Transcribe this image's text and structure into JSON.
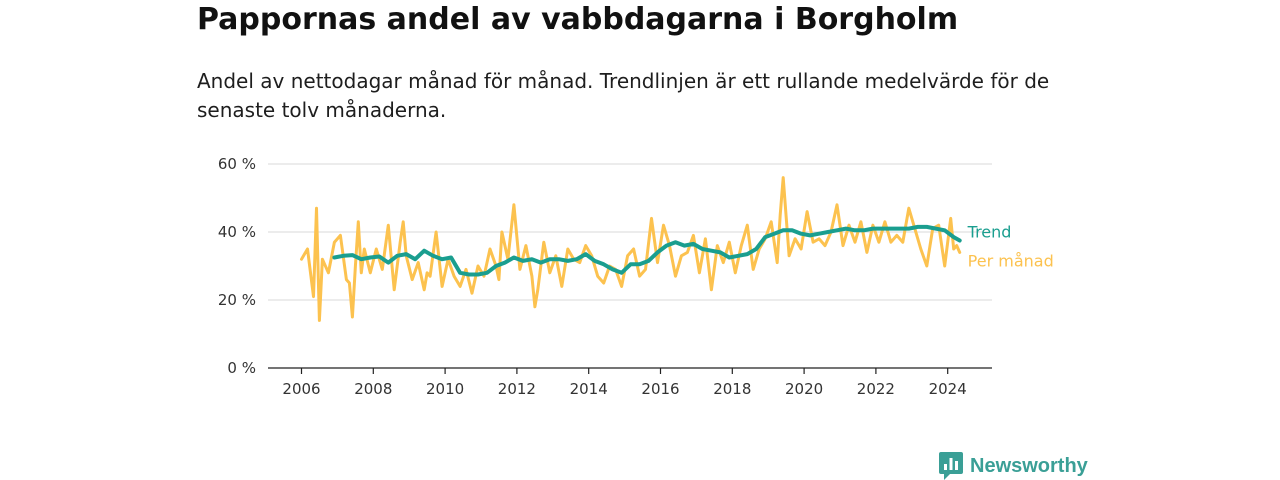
{
  "header": {
    "title": "Pappornas andel av vabbdagarna i Borgholm",
    "subtitle": "Andel av nettodagar månad för månad. Trendlinjen är ett rullande medelvärde för de senaste tolv månaderna."
  },
  "brand": {
    "name": "Newsworthy",
    "icon": "newsworthy-logo-icon",
    "color": "#3a9f96"
  },
  "chart_data": {
    "type": "line",
    "title": "Pappornas andel av vabbdagarna i Borgholm",
    "subtitle": "Andel av nettodagar månad för månad. Trendlinjen är ett rullande medelvärde för de senaste tolv månaderna.",
    "xlabel": "",
    "ylabel": "",
    "xlim": [
      "2006-01",
      "2024-12"
    ],
    "ylim": [
      0,
      60
    ],
    "y_ticks": [
      0,
      20,
      40,
      60
    ],
    "y_tick_labels": [
      "0 %",
      "20 %",
      "40 %",
      "60 %"
    ],
    "x_ticks": [
      "2006",
      "2008",
      "2010",
      "2012",
      "2014",
      "2016",
      "2018",
      "2020",
      "2022",
      "2024"
    ],
    "grid": "horizontal",
    "series_labels_at_line_end": true,
    "series": [
      {
        "name": "Per månad",
        "color": "#fcc24f",
        "x": [
          "2006-01",
          "2006-03",
          "2006-05",
          "2006-06",
          "2006-07",
          "2006-08",
          "2006-10",
          "2006-12",
          "2007-02",
          "2007-04",
          "2007-05",
          "2007-06",
          "2007-07",
          "2007-08",
          "2007-09",
          "2007-10",
          "2007-12",
          "2008-02",
          "2008-04",
          "2008-06",
          "2008-08",
          "2008-10",
          "2008-11",
          "2008-12",
          "2009-02",
          "2009-04",
          "2009-06",
          "2009-07",
          "2009-08",
          "2009-10",
          "2009-12",
          "2010-02",
          "2010-04",
          "2010-06",
          "2010-08",
          "2010-10",
          "2010-12",
          "2011-02",
          "2011-04",
          "2011-06",
          "2011-07",
          "2011-08",
          "2011-10",
          "2011-12",
          "2012-02",
          "2012-04",
          "2012-06",
          "2012-07",
          "2012-08",
          "2012-10",
          "2012-12",
          "2013-02",
          "2013-04",
          "2013-06",
          "2013-08",
          "2013-10",
          "2013-12",
          "2014-02",
          "2014-04",
          "2014-06",
          "2014-08",
          "2014-10",
          "2014-12",
          "2015-02",
          "2015-04",
          "2015-06",
          "2015-08",
          "2015-10",
          "2015-12",
          "2016-02",
          "2016-04",
          "2016-06",
          "2016-08",
          "2016-10",
          "2016-12",
          "2017-02",
          "2017-04",
          "2017-06",
          "2017-08",
          "2017-10",
          "2017-12",
          "2018-02",
          "2018-04",
          "2018-06",
          "2018-08",
          "2018-10",
          "2018-12",
          "2019-02",
          "2019-04",
          "2019-05",
          "2019-06",
          "2019-08",
          "2019-10",
          "2019-12",
          "2020-02",
          "2020-04",
          "2020-06",
          "2020-08",
          "2020-10",
          "2020-12",
          "2021-02",
          "2021-04",
          "2021-06",
          "2021-08",
          "2021-10",
          "2021-12",
          "2022-02",
          "2022-04",
          "2022-06",
          "2022-08",
          "2022-10",
          "2022-12",
          "2023-02",
          "2023-04",
          "2023-06",
          "2023-08",
          "2023-10",
          "2023-12",
          "2024-02",
          "2024-03",
          "2024-04",
          "2024-05"
        ],
        "y": [
          32,
          35,
          21,
          47,
          14,
          32,
          28,
          37,
          39,
          26,
          25,
          15,
          30,
          43,
          28,
          35,
          28,
          35,
          29,
          42,
          23,
          37,
          43,
          33,
          26,
          31,
          23,
          28,
          27,
          40,
          24,
          32,
          27,
          24,
          29,
          22,
          30,
          27,
          35,
          30,
          26,
          40,
          32,
          48,
          29,
          36,
          27,
          18,
          23,
          37,
          28,
          33,
          24,
          35,
          32,
          31,
          36,
          33,
          27,
          25,
          30,
          29,
          24,
          33,
          35,
          27,
          29,
          44,
          31,
          42,
          36,
          27,
          33,
          34,
          39,
          28,
          38,
          23,
          36,
          31,
          37,
          28,
          36,
          42,
          29,
          35,
          38,
          43,
          31,
          45,
          56,
          33,
          38,
          35,
          46,
          37,
          38,
          36,
          40,
          48,
          36,
          42,
          37,
          43,
          34,
          42,
          37,
          43,
          37,
          39,
          37,
          47,
          41,
          35,
          30,
          41,
          42,
          30,
          44,
          35,
          36,
          34
        ]
      },
      {
        "name": "Trend",
        "color": "#1a9e8f",
        "x": [
          "2006-12",
          "2007-03",
          "2007-06",
          "2007-09",
          "2007-12",
          "2008-03",
          "2008-06",
          "2008-09",
          "2008-12",
          "2009-03",
          "2009-06",
          "2009-09",
          "2009-12",
          "2010-03",
          "2010-06",
          "2010-09",
          "2010-12",
          "2011-03",
          "2011-06",
          "2011-09",
          "2011-12",
          "2012-03",
          "2012-06",
          "2012-09",
          "2012-12",
          "2013-03",
          "2013-06",
          "2013-09",
          "2013-12",
          "2014-03",
          "2014-06",
          "2014-09",
          "2014-12",
          "2015-03",
          "2015-06",
          "2015-09",
          "2015-12",
          "2016-03",
          "2016-06",
          "2016-09",
          "2016-12",
          "2017-03",
          "2017-06",
          "2017-09",
          "2017-12",
          "2018-03",
          "2018-06",
          "2018-09",
          "2018-12",
          "2019-03",
          "2019-06",
          "2019-09",
          "2019-12",
          "2020-03",
          "2020-06",
          "2020-09",
          "2020-12",
          "2021-03",
          "2021-06",
          "2021-09",
          "2021-12",
          "2022-03",
          "2022-06",
          "2022-09",
          "2022-12",
          "2023-03",
          "2023-06",
          "2023-09",
          "2023-12",
          "2024-03",
          "2024-05"
        ],
        "y": [
          32.5,
          33,
          33.2,
          32,
          32.5,
          32.8,
          31,
          33,
          33.5,
          32,
          34.5,
          33,
          32,
          32.5,
          28,
          27.5,
          27.5,
          28,
          30,
          31,
          32.5,
          31.5,
          32,
          31,
          32,
          32,
          31.5,
          32,
          33.5,
          31.5,
          30.5,
          29,
          28,
          30.5,
          30.5,
          31.5,
          34,
          36,
          37,
          36,
          36.5,
          35,
          34.5,
          34,
          32.5,
          33,
          33.5,
          35,
          38.5,
          39.5,
          40.5,
          40.5,
          39.5,
          39,
          39.5,
          40,
          40.5,
          41,
          40.5,
          40.5,
          41,
          41,
          41,
          41,
          41,
          41.5,
          41.5,
          41,
          40.5,
          38.5,
          37.5
        ]
      }
    ]
  }
}
